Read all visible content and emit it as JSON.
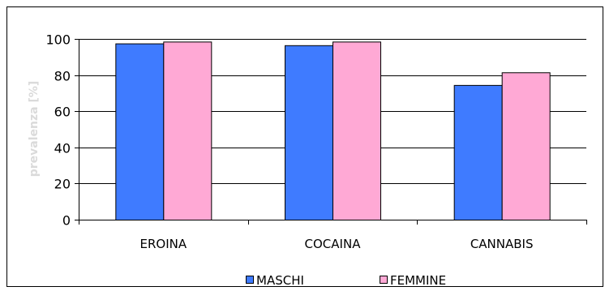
{
  "chart_data": {
    "type": "bar",
    "title": "",
    "xlabel": "",
    "ylabel": "prevalenza [%]",
    "ylim": [
      0,
      100
    ],
    "yticks": [
      0,
      20,
      40,
      60,
      80,
      100
    ],
    "grid": true,
    "legend_position": "bottom",
    "categories": [
      "EROINA",
      "COCAINA",
      "CANNABIS"
    ],
    "series": [
      {
        "name": "MASCHI",
        "values": [
          97.5,
          96.5,
          74.5
        ],
        "color": "#3F7BFF"
      },
      {
        "name": "FEMMINE",
        "values": [
          98.5,
          98.5,
          81.5
        ],
        "color": "#FFA9D5"
      }
    ]
  }
}
